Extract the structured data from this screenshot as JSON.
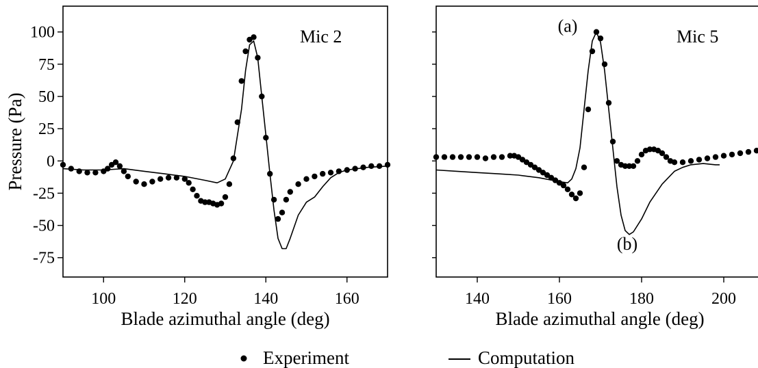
{
  "chart_data": [
    {
      "type": "scatter+line",
      "annotation": "Mic 2",
      "xlabel": "Blade azimuthal angle (deg)",
      "ylabel": "Pressure (Pa)",
      "xlim": [
        90,
        170
      ],
      "ylim": [
        -90,
        120
      ],
      "xticks": [
        100,
        120,
        140,
        160
      ],
      "yticks": [
        100,
        75,
        50,
        25,
        0,
        -25,
        -50,
        -75
      ],
      "ytick_labels": [
        "100",
        "75",
        "50",
        "25",
        "0",
        "-25",
        "-50",
        "-75"
      ],
      "grid": false,
      "series": [
        {
          "name": "Experiment",
          "kind": "markers",
          "x": [
            90,
            92,
            94,
            96,
            98,
            100,
            101,
            102,
            103,
            104,
            105,
            106,
            108,
            110,
            112,
            114,
            116,
            118,
            120,
            121,
            122,
            123,
            124,
            125,
            126,
            127,
            128,
            129,
            130,
            131,
            132,
            133,
            134,
            135,
            136,
            137,
            138,
            139,
            140,
            141,
            142,
            143,
            144,
            145,
            146,
            148,
            150,
            152,
            154,
            156,
            158,
            160,
            162,
            164,
            166,
            168,
            170
          ],
          "y": [
            -3,
            -6,
            -8,
            -9,
            -9,
            -8,
            -6,
            -3,
            -1,
            -4,
            -8,
            -12,
            -16,
            -18,
            -16,
            -14,
            -13,
            -13,
            -14,
            -17,
            -22,
            -27,
            -31,
            -32,
            -32,
            -33,
            -34,
            -33,
            -28,
            -18,
            2,
            30,
            62,
            85,
            94,
            96,
            80,
            50,
            18,
            -10,
            -30,
            -45,
            -40,
            -30,
            -24,
            -18,
            -14,
            -12,
            -10,
            -9,
            -8,
            -7,
            -6,
            -5,
            -4,
            -4,
            -3
          ]
        },
        {
          "name": "Computation",
          "kind": "line",
          "x": [
            90,
            95,
            100,
            105,
            110,
            115,
            120,
            125,
            128,
            130,
            132,
            134,
            135,
            136,
            137,
            138,
            139,
            140,
            141,
            142,
            143,
            144,
            145,
            146,
            148,
            150,
            152,
            154,
            156,
            158,
            160,
            165,
            170
          ],
          "y": [
            -6,
            -7,
            -7,
            -6,
            -8,
            -10,
            -12,
            -15,
            -17,
            -14,
            0,
            40,
            70,
            90,
            93,
            80,
            50,
            20,
            -10,
            -38,
            -60,
            -68,
            -68,
            -60,
            -42,
            -32,
            -28,
            -20,
            -13,
            -9,
            -7,
            -5,
            -4
          ]
        }
      ]
    },
    {
      "type": "scatter+line",
      "annotation": "Mic 5",
      "xlabel": "Blade azimuthal angle (deg)",
      "xlim": [
        130,
        210
      ],
      "ylim": [
        -90,
        120
      ],
      "xticks": [
        140,
        160,
        180,
        200
      ],
      "yticks": [
        100,
        75,
        50,
        25,
        0,
        -25,
        -50,
        -75
      ],
      "grid": false,
      "labels": [
        {
          "text": "(a)",
          "x": 162,
          "y": 105
        },
        {
          "text": "(b)",
          "x": 176.5,
          "y": -64
        }
      ],
      "series": [
        {
          "name": "Experiment",
          "kind": "markers",
          "x": [
            130,
            132,
            134,
            136,
            138,
            140,
            142,
            144,
            146,
            148,
            149,
            150,
            151,
            152,
            153,
            154,
            155,
            156,
            157,
            158,
            159,
            160,
            161,
            162,
            163,
            164,
            165,
            166,
            167,
            168,
            169,
            170,
            171,
            172,
            173,
            174,
            175,
            176,
            177,
            178,
            179,
            180,
            181,
            182,
            183,
            184,
            185,
            186,
            187,
            188,
            190,
            192,
            194,
            196,
            198,
            200,
            202,
            204,
            206,
            208,
            210
          ],
          "y": [
            3,
            3,
            3,
            3,
            3,
            3,
            2,
            3,
            3,
            4,
            4,
            3,
            1,
            -1,
            -3,
            -5,
            -7,
            -9,
            -11,
            -13,
            -15,
            -17,
            -19,
            -22,
            -26,
            -29,
            -25,
            -5,
            40,
            85,
            100,
            95,
            75,
            45,
            15,
            0,
            -3,
            -4,
            -4,
            -4,
            0,
            5,
            8,
            9,
            9,
            8,
            6,
            3,
            0,
            -1,
            -1,
            0,
            1,
            2,
            3,
            4,
            5,
            6,
            7,
            8,
            9
          ]
        },
        {
          "name": "Computation",
          "kind": "line",
          "x": [
            130,
            135,
            140,
            145,
            150,
            155,
            160,
            162,
            163,
            164,
            165,
            166,
            167,
            168,
            169,
            170,
            171,
            172,
            173,
            174,
            175,
            176,
            177,
            178,
            180,
            182,
            185,
            188,
            190,
            192,
            195,
            198,
            199
          ],
          "y": [
            -7,
            -8,
            -9,
            -10,
            -11,
            -13,
            -16,
            -17,
            -14,
            -6,
            10,
            40,
            70,
            93,
            100,
            92,
            70,
            40,
            10,
            -20,
            -42,
            -54,
            -57,
            -55,
            -45,
            -32,
            -18,
            -8,
            -5,
            -3,
            -2,
            -3,
            -3
          ]
        }
      ]
    }
  ],
  "legend": {
    "experiment_label": "Experiment",
    "computation_label": "Computation"
  }
}
